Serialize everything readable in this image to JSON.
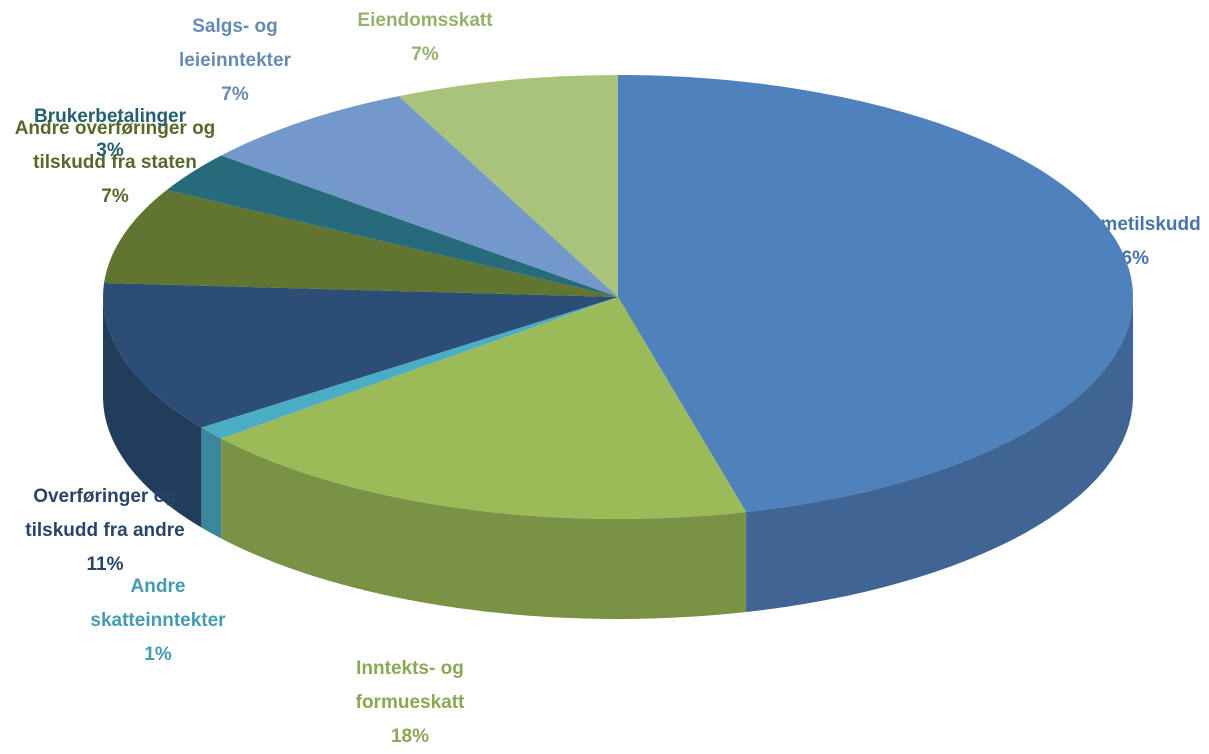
{
  "chart_data": {
    "type": "pie3d",
    "categories": [
      "Rammetilskudd",
      "Inntekts- og formueskatt",
      "Andre skatteinntekter",
      "Overføringer og tilskudd fra andre",
      "Andre overføringer og tilskudd fra staten",
      "Brukerbetalinger",
      "Salgs- og leieinntekter",
      "Eiendomsskatt"
    ],
    "values": [
      46,
      18,
      1,
      11,
      7,
      3,
      7,
      7
    ],
    "value_labels": [
      "46%",
      "18%",
      "1%",
      "11%",
      "7%",
      "3%",
      "7%",
      "7%"
    ],
    "colors": [
      "#4f81bd",
      "#9bbb59",
      "#4bacc6",
      "#2c4d75",
      "#5f7530",
      "#276a7c",
      "#7299c9",
      "#a9c47a"
    ]
  }
}
